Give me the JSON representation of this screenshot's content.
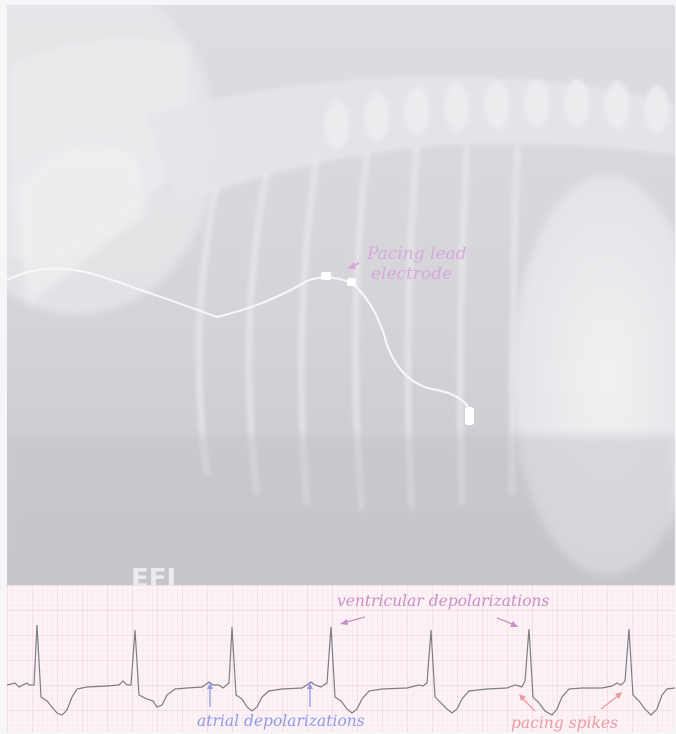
{
  "radiograph": {
    "lead_label_line1": "Pacing lead",
    "lead_label_line2": "electrode",
    "marker": "EFI"
  },
  "ecg": {
    "label_ventricular": "ventricular depolarizations",
    "label_atrial": "atrial depolarizations",
    "label_pacing": "pacing spikes"
  },
  "colors": {
    "pacing_label": "#d8a8dc",
    "ventricular_label": "#c98ec8",
    "atrial_label": "#8f9ae8",
    "pacing_spikes_label": "#ec9aa4",
    "ecg_grid": "#f2c8cf",
    "ecg_trace": "#7d7d88"
  }
}
